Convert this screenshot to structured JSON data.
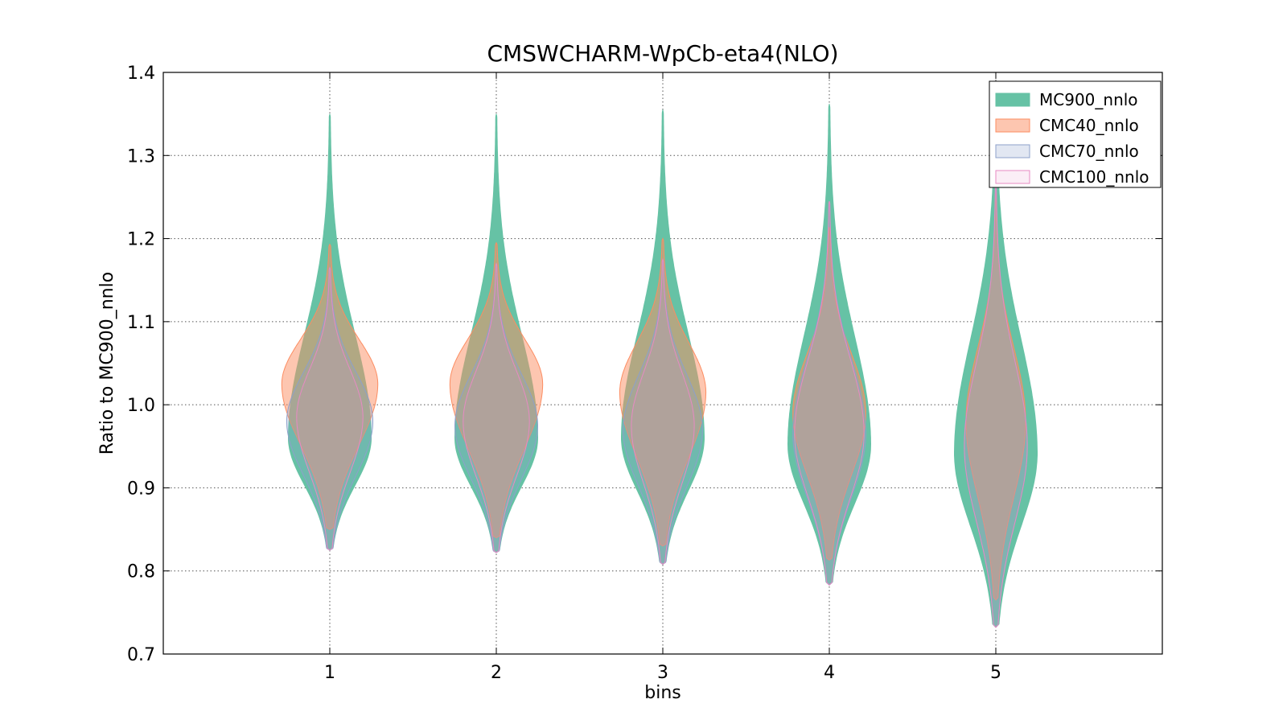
{
  "chart_data": {
    "type": "violin",
    "title": "CMSWCHARM-WpCb-eta4(NLO)",
    "xlabel": "bins",
    "ylabel": "Ratio to MC900_nnlo",
    "xlim": [
      0,
      6
    ],
    "ylim": [
      0.7,
      1.4
    ],
    "x_ticks": [
      1,
      2,
      3,
      4,
      5
    ],
    "y_ticks": [
      0.7,
      0.8,
      0.9,
      1.0,
      1.1,
      1.2,
      1.3,
      1.4
    ],
    "y_tick_labels": [
      "0.7",
      "0.8",
      "0.9",
      "1.0",
      "1.1",
      "1.2",
      "1.3",
      "1.4"
    ],
    "grid": true,
    "legend_position": "top-right",
    "series": [
      {
        "name": "MC900_nnlo",
        "fill": "#66c2a5",
        "stroke": "#66c2a5",
        "fill_opacity": 1.0,
        "bins": [
          {
            "x": 1,
            "min": 0.825,
            "max": 1.35,
            "mode": 0.96,
            "halfwidth": 0.25
          },
          {
            "x": 2,
            "min": 0.822,
            "max": 1.35,
            "mode": 0.96,
            "halfwidth": 0.25
          },
          {
            "x": 3,
            "min": 0.808,
            "max": 1.355,
            "mode": 0.96,
            "halfwidth": 0.25
          },
          {
            "x": 4,
            "min": 0.783,
            "max": 1.362,
            "mode": 0.952,
            "halfwidth": 0.25
          },
          {
            "x": 5,
            "min": 0.732,
            "max": 1.37,
            "mode": 0.942,
            "halfwidth": 0.25
          }
        ]
      },
      {
        "name": "CMC40_nnlo",
        "fill": "#fc8d62",
        "stroke": "#fc8d62",
        "fill_opacity": 0.5,
        "bins": [
          {
            "x": 1,
            "min": 0.85,
            "max": 1.193,
            "mode": 1.025,
            "halfwidth": 0.29
          },
          {
            "x": 2,
            "min": 0.84,
            "max": 1.195,
            "mode": 1.025,
            "halfwidth": 0.28
          },
          {
            "x": 3,
            "min": 0.83,
            "max": 1.2,
            "mode": 1.015,
            "halfwidth": 0.26
          },
          {
            "x": 4,
            "min": 0.813,
            "max": 1.213,
            "mode": 0.99,
            "halfwidth": 0.22
          },
          {
            "x": 5,
            "min": 0.765,
            "max": 1.255,
            "mode": 0.98,
            "halfwidth": 0.18
          }
        ]
      },
      {
        "name": "CMC70_nnlo",
        "fill": "#8da0cb",
        "stroke": "#8da0cb",
        "fill_opacity": 0.25,
        "bins": [
          {
            "x": 1,
            "min": 0.825,
            "max": 1.165,
            "mode": 0.98,
            "halfwidth": 0.26
          },
          {
            "x": 2,
            "min": 0.822,
            "max": 1.168,
            "mode": 0.975,
            "halfwidth": 0.25
          },
          {
            "x": 3,
            "min": 0.808,
            "max": 1.175,
            "mode": 0.97,
            "halfwidth": 0.24
          },
          {
            "x": 4,
            "min": 0.783,
            "max": 1.245,
            "mode": 0.965,
            "halfwidth": 0.22
          },
          {
            "x": 5,
            "min": 0.732,
            "max": 1.27,
            "mode": 0.95,
            "halfwidth": 0.19
          }
        ]
      },
      {
        "name": "CMC100_nnlo",
        "fill": "#e78ac3",
        "stroke": "#e78ac3",
        "fill_opacity": 0.15,
        "bins": [
          {
            "x": 1,
            "min": 0.825,
            "max": 1.165,
            "mode": 0.985,
            "halfwidth": 0.2
          },
          {
            "x": 2,
            "min": 0.822,
            "max": 1.17,
            "mode": 0.98,
            "halfwidth": 0.2
          },
          {
            "x": 3,
            "min": 0.808,
            "max": 1.175,
            "mode": 0.975,
            "halfwidth": 0.19
          },
          {
            "x": 4,
            "min": 0.783,
            "max": 1.245,
            "mode": 0.965,
            "halfwidth": 0.21
          },
          {
            "x": 5,
            "min": 0.732,
            "max": 1.27,
            "mode": 0.95,
            "halfwidth": 0.19
          }
        ]
      }
    ]
  }
}
